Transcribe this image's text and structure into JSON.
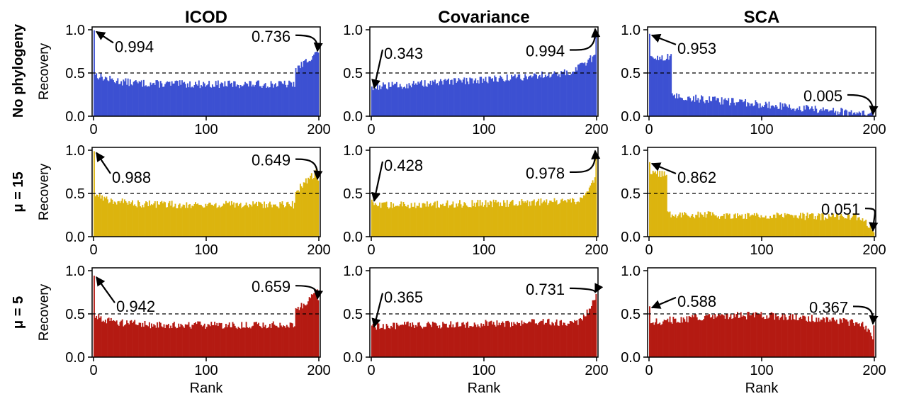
{
  "figure": {
    "columns": [
      "ICOD",
      "Covariance",
      "SCA"
    ],
    "rows": [
      "No phylogeny",
      "μ = 15",
      "μ = 5"
    ],
    "ylabel": "Recovery",
    "xlabel": "Rank",
    "xticks": [
      "0",
      "100",
      "200"
    ],
    "yticks": [
      "0.0",
      "0.5",
      "1.0"
    ]
  },
  "colors": {
    "no_phylogeny": "#3c50d2",
    "mu15": "#dcb40e",
    "mu5": "#b41a12"
  },
  "chart_data": [
    {
      "type": "bar",
      "row": "No phylogeny",
      "column": "ICOD",
      "x_range": [
        0,
        200
      ],
      "ylim": [
        0,
        1
      ],
      "reference_line": 0.5,
      "first_value": 0.994,
      "last_value": 0.736,
      "profile": "U",
      "annotations": [
        {
          "label": "0.994",
          "rank": 0,
          "value": 0.994
        },
        {
          "label": "0.736",
          "rank": 200,
          "value": 0.736
        }
      ]
    },
    {
      "type": "bar",
      "row": "No phylogeny",
      "column": "Covariance",
      "x_range": [
        0,
        200
      ],
      "ylim": [
        0,
        1
      ],
      "reference_line": 0.5,
      "first_value": 0.343,
      "last_value": 0.994,
      "profile": "rising",
      "annotations": [
        {
          "label": "0.343",
          "rank": 0,
          "value": 0.343
        },
        {
          "label": "0.994",
          "rank": 200,
          "value": 0.994
        }
      ]
    },
    {
      "type": "bar",
      "row": "No phylogeny",
      "column": "SCA",
      "x_range": [
        0,
        200
      ],
      "ylim": [
        0,
        1
      ],
      "reference_line": 0.5,
      "first_value": 0.953,
      "last_value": 0.005,
      "profile": "step-decline",
      "annotations": [
        {
          "label": "0.953",
          "rank": 0,
          "value": 0.953
        },
        {
          "label": "0.005",
          "rank": 200,
          "value": 0.005
        }
      ]
    },
    {
      "type": "bar",
      "row": "μ = 15",
      "column": "ICOD",
      "x_range": [
        0,
        200
      ],
      "ylim": [
        0,
        1
      ],
      "reference_line": 0.5,
      "first_value": 0.988,
      "last_value": 0.649,
      "profile": "U",
      "annotations": [
        {
          "label": "0.988",
          "rank": 0,
          "value": 0.988
        },
        {
          "label": "0.649",
          "rank": 200,
          "value": 0.649
        }
      ]
    },
    {
      "type": "bar",
      "row": "μ = 15",
      "column": "Covariance",
      "x_range": [
        0,
        200
      ],
      "ylim": [
        0,
        1
      ],
      "reference_line": 0.5,
      "first_value": 0.428,
      "last_value": 0.978,
      "profile": "flat-rise",
      "annotations": [
        {
          "label": "0.428",
          "rank": 0,
          "value": 0.428
        },
        {
          "label": "0.978",
          "rank": 200,
          "value": 0.978
        }
      ]
    },
    {
      "type": "bar",
      "row": "μ = 15",
      "column": "SCA",
      "x_range": [
        0,
        200
      ],
      "ylim": [
        0,
        1
      ],
      "reference_line": 0.5,
      "first_value": 0.862,
      "last_value": 0.051,
      "profile": "step-flat",
      "annotations": [
        {
          "label": "0.862",
          "rank": 0,
          "value": 0.862
        },
        {
          "label": "0.051",
          "rank": 200,
          "value": 0.051
        }
      ]
    },
    {
      "type": "bar",
      "row": "μ = 5",
      "column": "ICOD",
      "x_range": [
        0,
        200
      ],
      "ylim": [
        0,
        1
      ],
      "reference_line": 0.5,
      "first_value": 0.942,
      "last_value": 0.659,
      "profile": "U",
      "annotations": [
        {
          "label": "0.942",
          "rank": 0,
          "value": 0.942
        },
        {
          "label": "0.659",
          "rank": 200,
          "value": 0.659
        }
      ]
    },
    {
      "type": "bar",
      "row": "μ = 5",
      "column": "Covariance",
      "x_range": [
        0,
        200
      ],
      "ylim": [
        0,
        1
      ],
      "reference_line": 0.5,
      "first_value": 0.365,
      "last_value": 0.731,
      "profile": "flat-rise",
      "annotations": [
        {
          "label": "0.365",
          "rank": 0,
          "value": 0.365
        },
        {
          "label": "0.731",
          "rank": 200,
          "value": 0.731
        }
      ]
    },
    {
      "type": "bar",
      "row": "μ = 5",
      "column": "SCA",
      "x_range": [
        0,
        200
      ],
      "ylim": [
        0,
        1
      ],
      "reference_line": 0.5,
      "first_value": 0.588,
      "last_value": 0.367,
      "profile": "hump",
      "annotations": [
        {
          "label": "0.588",
          "rank": 0,
          "value": 0.588
        },
        {
          "label": "0.367",
          "rank": 200,
          "value": 0.367
        }
      ]
    }
  ]
}
